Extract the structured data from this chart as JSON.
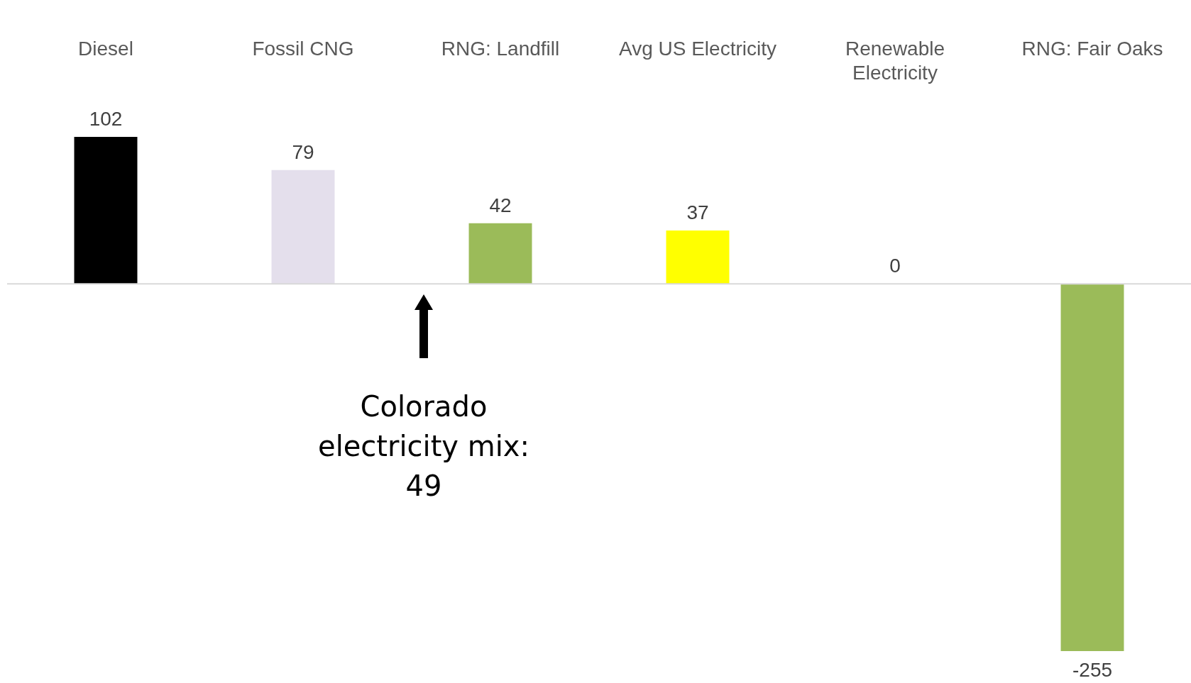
{
  "chart_data": {
    "type": "bar",
    "categories": [
      "Diesel",
      "Fossil CNG",
      "RNG: Landfill",
      "Avg US Electricity",
      "Renewable Electricity",
      "RNG: Fair Oaks"
    ],
    "values": [
      102,
      79,
      42,
      37,
      0,
      -255
    ],
    "colors": [
      "#000000",
      "#e4dfec",
      "#9bbb59",
      "#ffff00",
      "#9bbb59",
      "#9bbb59"
    ],
    "data_labels": true,
    "annotations": [
      "Colorado electricity mix: 49"
    ]
  }
}
